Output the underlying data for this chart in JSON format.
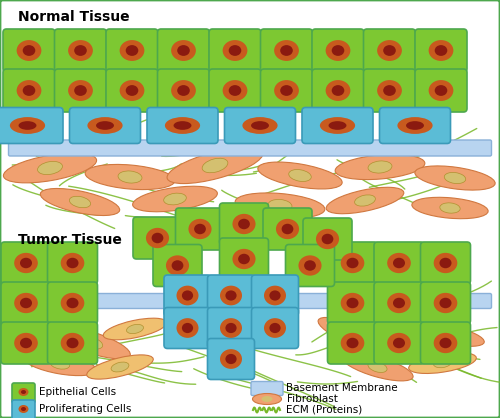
{
  "title_normal": "Normal Tissue",
  "title_tumor": "Tumor Tissue",
  "colors": {
    "border_color": "#4da84d",
    "epithelial_fill": "#7dc832",
    "epithelial_border": "#4da84d",
    "nucleus_outer": "#c85a1e",
    "nucleus_inner": "#8b1a10",
    "proliferating_fill": "#5bbcd6",
    "proliferating_border": "#3a9ab8",
    "basement_membrane": "#b8d4f0",
    "basement_membrane_border": "#8ab0d8",
    "fibroblast_fill": "#f0a070",
    "fibroblast_border": "#d07840",
    "fibroblast_nucleus": "#d4c070",
    "ecm_color": "#78b828"
  },
  "legend": {
    "epithelial": "Epithelial Cells",
    "proliferating": "Proliferating Cells",
    "basement": "Basement Membrane",
    "fibroblast": "Fibroblast",
    "ecm": "ECM (Proteins)"
  }
}
